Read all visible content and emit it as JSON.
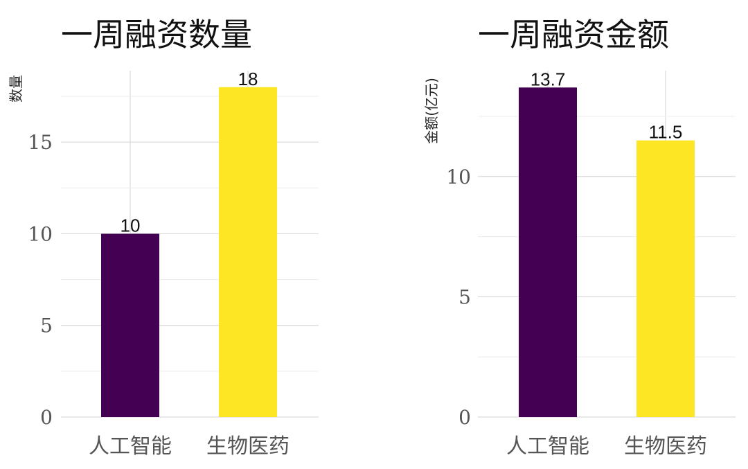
{
  "chart_data": [
    {
      "type": "bar",
      "title": "一周融资数量",
      "xlabel": "",
      "ylabel": "数量",
      "categories": [
        "人工智能",
        "生物医药"
      ],
      "values": [
        10,
        18
      ],
      "value_labels": [
        "10",
        "18"
      ],
      "colors": [
        "#440154",
        "#FDE725"
      ],
      "ylim": [
        0,
        18.9
      ],
      "yticks": [
        0,
        5,
        10,
        15
      ],
      "ytick_labels": [
        "0",
        "5",
        "10",
        "15"
      ],
      "grid": true,
      "legend": "none"
    },
    {
      "type": "bar",
      "title": "一周融资金额",
      "xlabel": "",
      "ylabel": "金额(亿元)",
      "categories": [
        "人工智能",
        "生物医药"
      ],
      "values": [
        13.7,
        11.5
      ],
      "value_labels": [
        "13.7",
        "11.5"
      ],
      "colors": [
        "#440154",
        "#FDE725"
      ],
      "ylim": [
        0,
        14.4
      ],
      "yticks": [
        0,
        5,
        10
      ],
      "ytick_labels": [
        "0",
        "5",
        "10"
      ],
      "grid": true,
      "legend": "none"
    }
  ]
}
